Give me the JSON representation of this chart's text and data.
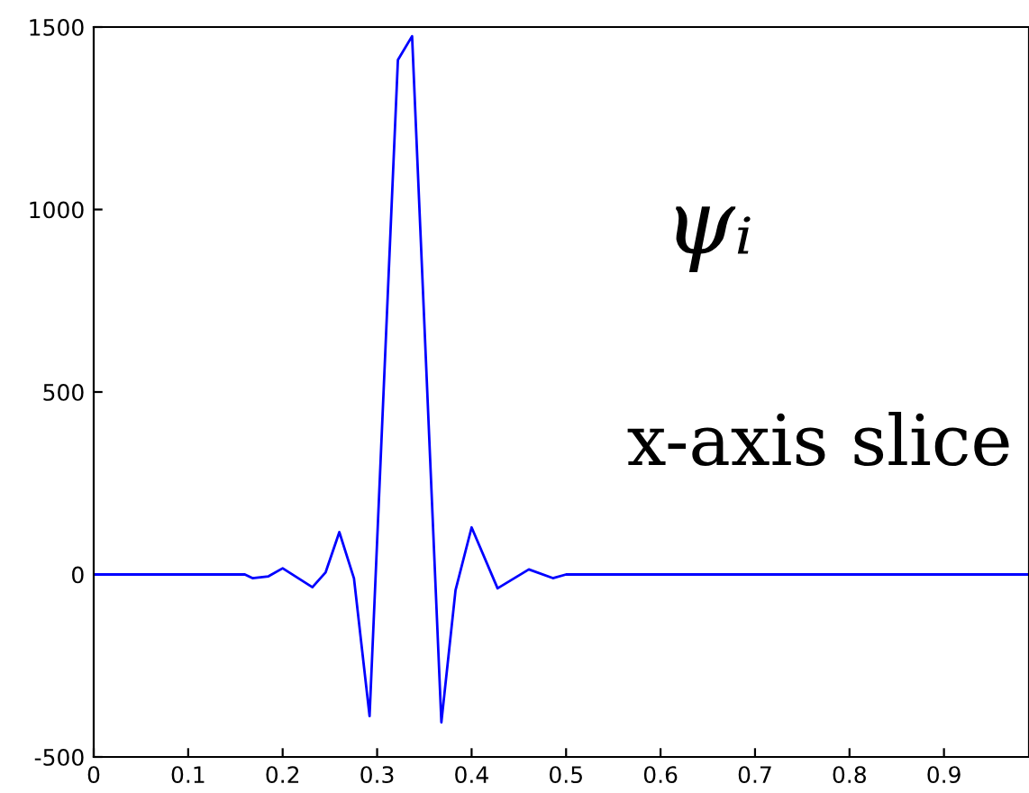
{
  "chart_data": {
    "type": "line",
    "annotations": [
      "ψᵢ",
      "x-axis slice"
    ],
    "x": [
      0,
      0.16,
      0.168,
      0.185,
      0.2,
      0.2315,
      0.2455,
      0.26,
      0.2755,
      0.292,
      0.322,
      0.337,
      0.368,
      0.383,
      0.4,
      0.4275,
      0.4606,
      0.486,
      0.5,
      0.99
    ],
    "series": [
      {
        "color": "#0000ff",
        "values": [
          0,
          0,
          -10,
          -5,
          17,
          -35,
          6,
          116,
          -11,
          -388,
          1410,
          1475,
          -405,
          -43,
          129,
          -38,
          14,
          -10,
          0,
          0
        ]
      }
    ],
    "xlim": [
      0,
      0.99
    ],
    "ylim": [
      -500,
      1500
    ],
    "xticks": [
      0,
      0.1,
      0.2,
      0.3,
      0.4,
      0.5,
      0.6,
      0.7,
      0.8,
      0.9
    ],
    "yticks": [
      -500,
      0,
      500,
      1000,
      1500
    ],
    "grid": false,
    "legend": false,
    "marker": "none",
    "line_style": "solid"
  }
}
